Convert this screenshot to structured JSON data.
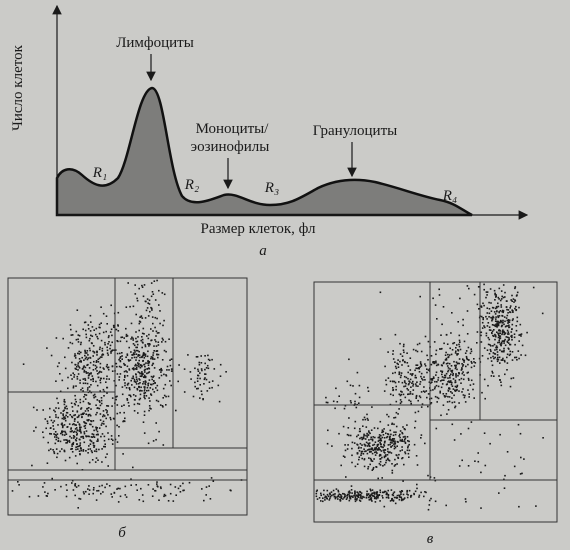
{
  "figure": {
    "y_axis_label": "Число клеток",
    "x_axis_label": "Размер клеток, фл",
    "annotations": [
      "Лимфоциты",
      "Моноциты/",
      "эозинофилы",
      "Гранулоциты"
    ],
    "regions": [
      "R₁",
      "R₂",
      "R₃",
      "R₄"
    ],
    "panels": [
      "а",
      "б",
      "в"
    ]
  }
}
